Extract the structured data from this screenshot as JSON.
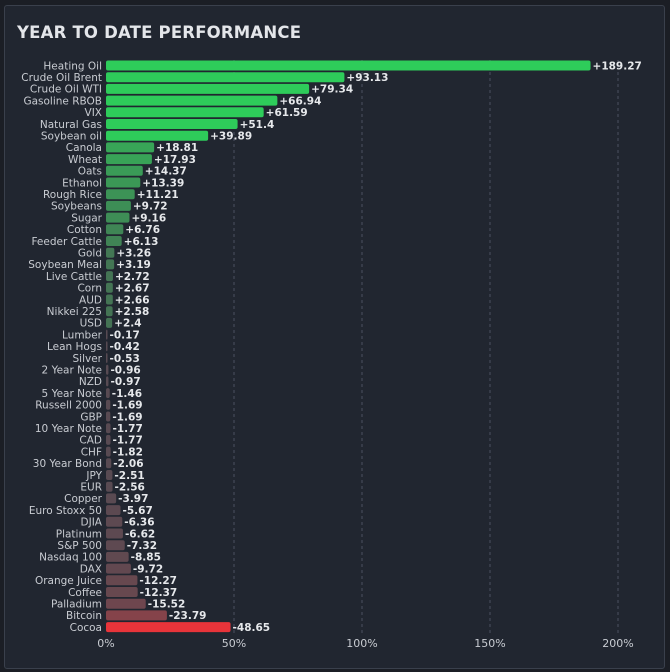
{
  "panel": {
    "title": "YEAR TO DATE PERFORMANCE"
  },
  "chart_data": {
    "type": "bar",
    "orientation": "horizontal",
    "title": "YEAR TO DATE PERFORMANCE",
    "unit": "%",
    "xlim": [
      0,
      200
    ],
    "xticks": [
      0,
      50,
      100,
      150,
      200
    ],
    "xtick_labels": [
      "0%",
      "50%",
      "100%",
      "150%",
      "200%"
    ],
    "grid": "vertical dashed",
    "bar_length": "absolute value",
    "categories": [
      "Heating Oil",
      "Crude Oil Brent",
      "Crude Oil WTI",
      "Gasoline RBOB",
      "VIX",
      "Natural Gas",
      "Soybean oil",
      "Canola",
      "Wheat",
      "Oats",
      "Ethanol",
      "Rough Rice",
      "Soybeans",
      "Sugar",
      "Cotton",
      "Feeder Cattle",
      "Gold",
      "Soybean Meal",
      "Live Cattle",
      "Corn",
      "AUD",
      "Nikkei 225",
      "USD",
      "Lumber",
      "Lean Hogs",
      "Silver",
      "2 Year Note",
      "NZD",
      "5 Year Note",
      "Russell 2000",
      "GBP",
      "10 Year Note",
      "CAD",
      "CHF",
      "30 Year Bond",
      "JPY",
      "EUR",
      "Copper",
      "Euro Stoxx 50",
      "DJIA",
      "Platinum",
      "S&P 500",
      "Nasdaq 100",
      "DAX",
      "Orange Juice",
      "Coffee",
      "Palladium",
      "Bitcoin",
      "Cocoa"
    ],
    "values": [
      189.27,
      93.13,
      79.34,
      66.94,
      61.59,
      51.4,
      39.89,
      18.81,
      17.93,
      14.37,
      13.39,
      11.21,
      9.72,
      9.16,
      6.76,
      6.13,
      3.26,
      3.19,
      2.72,
      2.67,
      2.66,
      2.58,
      2.4,
      -0.17,
      -0.42,
      -0.53,
      -0.96,
      -0.97,
      -1.46,
      -1.69,
      -1.69,
      -1.77,
      -1.77,
      -1.82,
      -2.06,
      -2.51,
      -2.56,
      -3.97,
      -5.67,
      -6.36,
      -6.62,
      -7.32,
      -8.85,
      -9.72,
      -12.27,
      -12.37,
      -15.52,
      -23.79,
      -48.65
    ],
    "value_labels": [
      "+189.27",
      "+93.13",
      "+79.34",
      "+66.94",
      "+61.59",
      "+51.4",
      "+39.89",
      "+18.81",
      "+17.93",
      "+14.37",
      "+13.39",
      "+11.21",
      "+9.72",
      "+9.16",
      "+6.76",
      "+6.13",
      "+3.26",
      "+3.19",
      "+2.72",
      "+2.67",
      "+2.66",
      "+2.58",
      "+2.4",
      "-0.17",
      "-0.42",
      "-0.53",
      "-0.96",
      "-0.97",
      "-1.46",
      "-1.69",
      "-1.69",
      "-1.77",
      "-1.77",
      "-1.82",
      "-2.06",
      "-2.51",
      "-2.56",
      "-3.97",
      "-5.67",
      "-6.36",
      "-6.62",
      "-7.32",
      "-8.85",
      "-9.72",
      "-12.27",
      "-12.37",
      "-15.52",
      "-23.79",
      "-48.65"
    ],
    "colors": {
      "positive_strong": "#2ecc5a",
      "positive_weak": "#4a5a52",
      "negative_weak": "#574a52",
      "negative_strong": "#e8343a",
      "grid": "#4a5060",
      "text": "#c9ccd2",
      "value_text": "#e6e8eb"
    }
  }
}
